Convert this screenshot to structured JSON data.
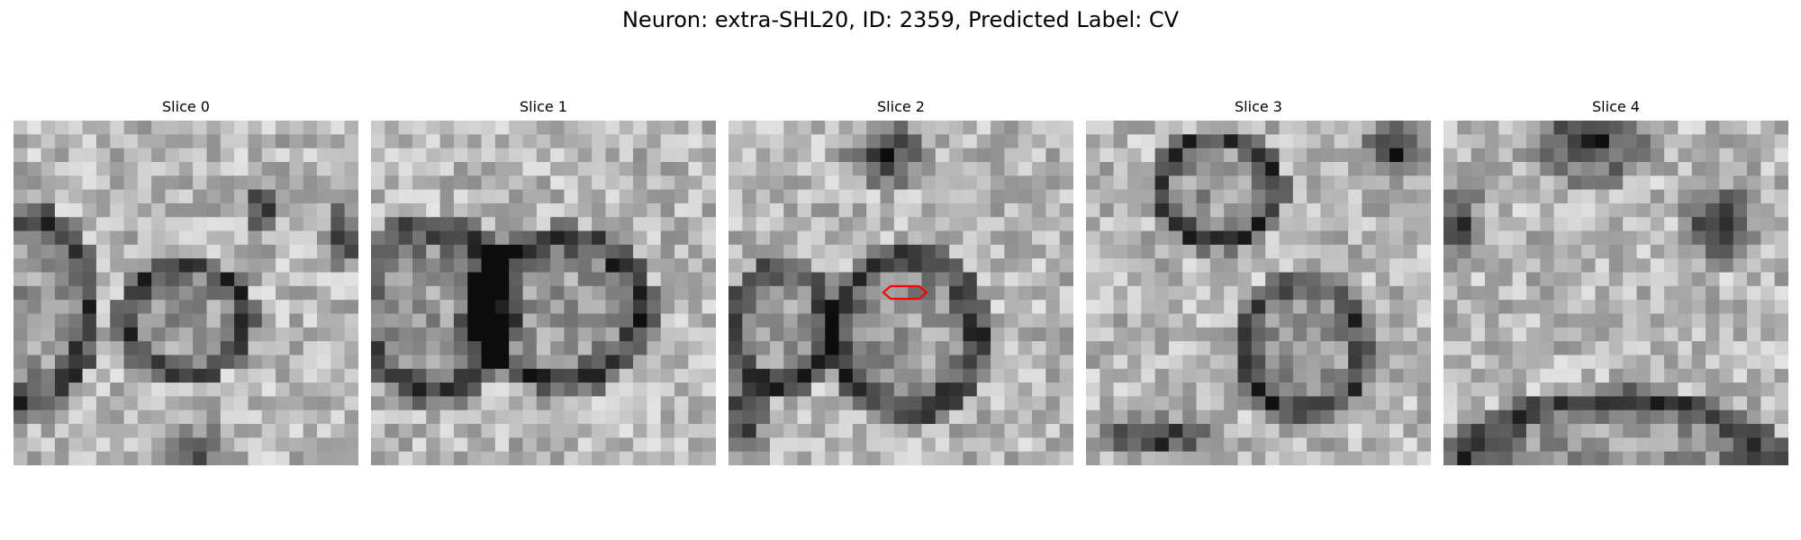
{
  "figure": {
    "title": "Neuron: extra-SHL20, ID: 2359, Predicted Label: CV"
  },
  "slices": [
    {
      "title": "Slice 0"
    },
    {
      "title": "Slice 1"
    },
    {
      "title": "Slice 2"
    },
    {
      "title": "Slice 3"
    },
    {
      "title": "Slice 4"
    }
  ],
  "style": {
    "marker_color": "#ff0000",
    "colormap": "grayscale"
  }
}
